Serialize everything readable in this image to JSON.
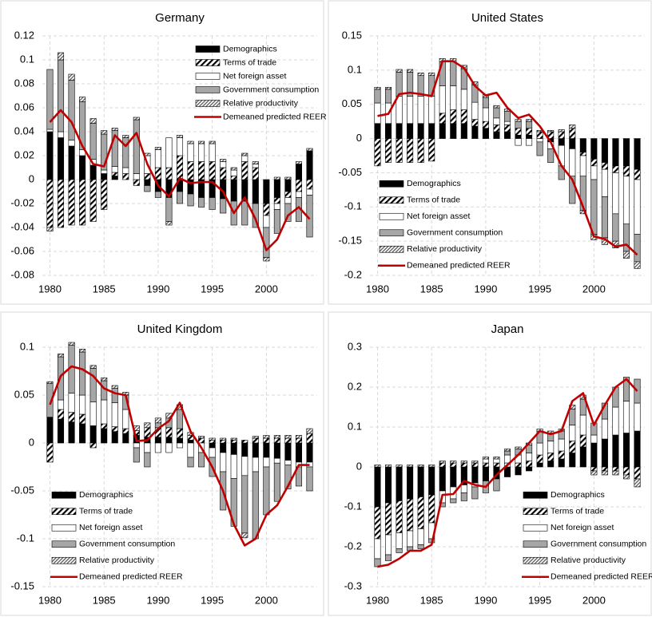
{
  "chart_data": [
    {
      "type": "bar",
      "stacked": true,
      "title": "Germany",
      "legend_position": "top-right",
      "grid": true,
      "x": [
        1980,
        1981,
        1982,
        1983,
        1984,
        1985,
        1986,
        1987,
        1988,
        1989,
        1990,
        1991,
        1992,
        1993,
        1994,
        1995,
        1996,
        1997,
        1998,
        1999,
        2000,
        2001,
        2002,
        2003,
        2004
      ],
      "xlim": [
        1979.3,
        2004.7
      ],
      "xticks": [
        1980,
        1985,
        1990,
        1995,
        2000
      ],
      "ylim": [
        -0.08,
        0.12
      ],
      "yticks": [
        -0.08,
        -0.06,
        -0.04,
        -0.02,
        0,
        0.02,
        0.04,
        0.06,
        0.08,
        0.1,
        0.12
      ],
      "series": [
        {
          "name": "Demographics",
          "color": "#000000",
          "values": [
            0.04,
            0.035,
            0.028,
            0.02,
            0.012,
            0.005,
            0.003,
            0,
            0,
            -0.005,
            -0.01,
            -0.015,
            -0.01,
            -0.012,
            -0.015,
            -0.015,
            -0.016,
            -0.018,
            -0.018,
            -0.02,
            -0.02,
            -0.015,
            -0.01,
            0.013,
            0.024
          ]
        },
        {
          "name": "Terms of trade",
          "color": "#000000",
          "hatch": "wide",
          "values": [
            -0.04,
            -0.04,
            -0.038,
            -0.038,
            -0.035,
            -0.025,
            0.003,
            0.005,
            -0.005,
            0.005,
            0.01,
            0.01,
            0.02,
            0.015,
            0.015,
            0.015,
            0.01,
            0.003,
            0.015,
            0.01,
            -0.01,
            -0.005,
            -0.005,
            -0.01,
            -0.008
          ]
        },
        {
          "name": "Net foreign asset",
          "color": "#ffffff",
          "values": [
            0.002,
            0.005,
            0.005,
            0.005,
            0.005,
            0.003,
            0.005,
            0.005,
            0.005,
            0.015,
            0.015,
            0.025,
            0.015,
            0.015,
            0.015,
            0.015,
            0.005,
            0.005,
            0.005,
            0.003,
            -0.01,
            -0.005,
            -0.005,
            -0.005,
            -0.005
          ]
        },
        {
          "name": "Government consumption",
          "color": "#a6a6a6",
          "values": [
            0.05,
            0.06,
            0.05,
            0.04,
            0.03,
            0.03,
            0.03,
            0.025,
            0.045,
            -0.005,
            -0.005,
            -0.02,
            -0.01,
            -0.01,
            -0.008,
            -0.01,
            -0.012,
            -0.02,
            -0.02,
            -0.02,
            -0.025,
            -0.02,
            -0.015,
            -0.02,
            -0.035
          ]
        },
        {
          "name": "Relative productivity",
          "color": "#595959",
          "hatch": "dense",
          "values": [
            -0.003,
            0.006,
            0.005,
            0.004,
            0.004,
            0.003,
            0.002,
            0.002,
            0.002,
            0.002,
            0.002,
            -0.003,
            0.002,
            0.002,
            0.002,
            0.002,
            0.002,
            0.002,
            0.002,
            0.002,
            -0.003,
            0.002,
            0.002,
            0.002,
            0.002
          ]
        },
        {
          "name": "Demeaned predicted REER",
          "type": "line",
          "color": "#c00000",
          "values": [
            0.048,
            0.058,
            0.048,
            0.028,
            0.013,
            0.011,
            0.037,
            0.028,
            0.039,
            0.013,
            -0.005,
            -0.014,
            0.001,
            -0.003,
            -0.002,
            -0.002,
            -0.01,
            -0.028,
            -0.015,
            -0.033,
            -0.059,
            -0.05,
            -0.03,
            -0.023,
            -0.033
          ]
        }
      ]
    },
    {
      "type": "bar",
      "stacked": true,
      "title": "United States",
      "legend_position": "bottom-left",
      "grid": true,
      "x": [
        1980,
        1981,
        1982,
        1983,
        1984,
        1985,
        1986,
        1987,
        1988,
        1989,
        1990,
        1991,
        1992,
        1993,
        1994,
        1995,
        1996,
        1997,
        1998,
        1999,
        2000,
        2001,
        2002,
        2003,
        2004
      ],
      "xlim": [
        1979.3,
        2004.7
      ],
      "xticks": [
        1980,
        1985,
        1990,
        1995,
        2000
      ],
      "ylim": [
        -0.2,
        0.15
      ],
      "yticks": [
        -0.2,
        -0.15,
        -0.1,
        -0.05,
        0,
        0.05,
        0.1,
        0.15
      ],
      "series": [
        {
          "name": "Demographics",
          "color": "#000000",
          "values": [
            0.022,
            0.022,
            0.022,
            0.022,
            0.022,
            0.022,
            0.022,
            0.022,
            0.022,
            0.018,
            0.015,
            0.01,
            0.01,
            0.005,
            0.005,
            0,
            -0.005,
            -0.01,
            -0.015,
            -0.02,
            -0.03,
            -0.035,
            -0.04,
            -0.04,
            -0.045
          ]
        },
        {
          "name": "Terms of trade",
          "color": "#000000",
          "hatch": "wide",
          "values": [
            -0.04,
            -0.035,
            -0.035,
            -0.035,
            -0.035,
            -0.033,
            0.015,
            0.02,
            0.02,
            0.01,
            0.01,
            0.01,
            0.01,
            0.01,
            0.01,
            0.01,
            0.01,
            0.01,
            0.015,
            -0.005,
            -0.01,
            -0.01,
            -0.01,
            -0.015,
            -0.015
          ]
        },
        {
          "name": "Net foreign asset",
          "color": "#ffffff",
          "values": [
            0.03,
            0.03,
            0.04,
            0.04,
            0.04,
            0.04,
            0.04,
            0.035,
            0.03,
            0.025,
            0.02,
            0.01,
            0.005,
            -0.01,
            -0.01,
            -0.005,
            -0.01,
            -0.03,
            -0.04,
            -0.03,
            -0.02,
            -0.04,
            -0.06,
            -0.07,
            -0.08
          ]
        },
        {
          "name": "Government consumption",
          "color": "#a6a6a6",
          "values": [
            0.02,
            0.02,
            0.035,
            0.035,
            0.03,
            0.03,
            0.035,
            0.035,
            0.03,
            0.025,
            0.015,
            0.015,
            0.015,
            0.01,
            0.01,
            -0.02,
            -0.02,
            -0.02,
            -0.04,
            -0.05,
            -0.08,
            -0.06,
            -0.04,
            -0.04,
            -0.04
          ]
        },
        {
          "name": "Relative productivity",
          "color": "#595959",
          "hatch": "dense",
          "values": [
            0.003,
            0.003,
            0.004,
            0.004,
            0.004,
            0.004,
            0.005,
            0.005,
            0.005,
            0.005,
            0.004,
            0.003,
            0.003,
            0.003,
            0.003,
            0.002,
            0.002,
            0.003,
            0.005,
            -0.005,
            -0.008,
            -0.01,
            -0.01,
            -0.01,
            -0.01
          ]
        },
        {
          "name": "Demeaned predicted REER",
          "type": "line",
          "color": "#c00000",
          "values": [
            0.033,
            0.036,
            0.065,
            0.067,
            0.065,
            0.062,
            0.113,
            0.113,
            0.103,
            0.077,
            0.063,
            0.067,
            0.045,
            0.03,
            0.035,
            0.018,
            -0.005,
            -0.04,
            -0.06,
            -0.1,
            -0.143,
            -0.147,
            -0.158,
            -0.155,
            -0.17
          ]
        }
      ]
    },
    {
      "type": "bar",
      "stacked": true,
      "title": "United Kingdom",
      "legend_position": "bottom-left",
      "grid": true,
      "x": [
        1980,
        1981,
        1982,
        1983,
        1984,
        1985,
        1986,
        1987,
        1988,
        1989,
        1990,
        1991,
        1992,
        1993,
        1994,
        1995,
        1996,
        1997,
        1998,
        1999,
        2000,
        2001,
        2002,
        2003,
        2004
      ],
      "xlim": [
        1979.3,
        2004.7
      ],
      "xticks": [
        1980,
        1985,
        1990,
        1995,
        2000
      ],
      "ylim": [
        -0.15,
        0.1
      ],
      "yticks": [
        -0.15,
        -0.1,
        -0.05,
        0,
        0.05,
        0.1
      ],
      "series": [
        {
          "name": "Demographics",
          "color": "#000000",
          "values": [
            0.027,
            0.025,
            0.022,
            0.02,
            0.018,
            0.015,
            0.012,
            0.01,
            0.008,
            0.006,
            0.006,
            0.006,
            0.005,
            0.003,
            0,
            -0.005,
            -0.01,
            -0.012,
            -0.014,
            -0.015,
            -0.015,
            -0.016,
            -0.018,
            -0.02,
            -0.02
          ]
        },
        {
          "name": "Terms of trade",
          "color": "#000000",
          "hatch": "wide",
          "values": [
            -0.02,
            0.01,
            0.01,
            0.01,
            -0.005,
            0.005,
            0.005,
            0.005,
            0.005,
            0.01,
            0.01,
            0.01,
            0.01,
            0.005,
            0.005,
            0.003,
            0.003,
            0.003,
            0.003,
            0.005,
            0.005,
            0.005,
            0.005,
            0.005,
            0.01
          ]
        },
        {
          "name": "Net foreign asset",
          "color": "#ffffff",
          "values": [
            0,
            0.01,
            0.02,
            0.02,
            0.025,
            0.025,
            0.025,
            0.02,
            -0.005,
            -0.01,
            -0.01,
            -0.01,
            -0.005,
            -0.015,
            -0.01,
            -0.01,
            -0.02,
            -0.025,
            -0.02,
            -0.015,
            -0.01,
            -0.005,
            -0.005,
            -0.005,
            -0.005
          ]
        },
        {
          "name": "Government consumption",
          "color": "#a6a6a6",
          "values": [
            0.035,
            0.045,
            0.05,
            0.045,
            0.035,
            0.02,
            0.015,
            0.015,
            -0.015,
            -0.015,
            0.005,
            0.01,
            0.02,
            -0.01,
            -0.015,
            -0.02,
            -0.04,
            -0.05,
            -0.06,
            -0.07,
            -0.05,
            -0.04,
            -0.025,
            -0.02,
            -0.025
          ]
        },
        {
          "name": "Relative productivity",
          "color": "#595959",
          "hatch": "dense",
          "values": [
            0.002,
            0.003,
            0.003,
            0.003,
            0.003,
            0.003,
            0.003,
            0.003,
            0.005,
            0.005,
            0.005,
            0.005,
            0.005,
            0.003,
            0.002,
            0.002,
            0.002,
            0.002,
            -0.005,
            0.002,
            0.003,
            0.003,
            0.003,
            0.003,
            0.005
          ]
        },
        {
          "name": "Demeaned predicted REER",
          "type": "line",
          "color": "#c00000",
          "values": [
            0.04,
            0.07,
            0.08,
            0.077,
            0.07,
            0.057,
            0.052,
            0.05,
            0.002,
            0.003,
            0.015,
            0.023,
            0.042,
            0.012,
            -0.005,
            -0.025,
            -0.05,
            -0.085,
            -0.107,
            -0.1,
            -0.075,
            -0.065,
            -0.045,
            -0.023,
            -0.023
          ]
        }
      ]
    },
    {
      "type": "bar",
      "stacked": true,
      "title": "Japan",
      "legend_position": "bottom-right",
      "grid": true,
      "x": [
        1980,
        1981,
        1982,
        1983,
        1984,
        1985,
        1986,
        1987,
        1988,
        1989,
        1990,
        1991,
        1992,
        1993,
        1994,
        1995,
        1996,
        1997,
        1998,
        1999,
        2000,
        2001,
        2002,
        2003,
        2004
      ],
      "xlim": [
        1979.3,
        2004.7
      ],
      "xticks": [
        1980,
        1985,
        1990,
        1995,
        2000
      ],
      "ylim": [
        -0.3,
        0.3
      ],
      "yticks": [
        -0.3,
        -0.2,
        -0.1,
        0,
        0.1,
        0.2,
        0.3
      ],
      "series": [
        {
          "name": "Demographics",
          "color": "#000000",
          "values": [
            -0.1,
            -0.09,
            -0.085,
            -0.08,
            -0.075,
            -0.07,
            -0.06,
            -0.05,
            -0.045,
            -0.04,
            -0.035,
            -0.03,
            -0.025,
            -0.02,
            -0.01,
            0.01,
            0.015,
            0.02,
            0.035,
            0.05,
            0.06,
            0.07,
            0.08,
            0.085,
            0.09
          ]
        },
        {
          "name": "Terms of trade",
          "color": "#000000",
          "hatch": "wide",
          "values": [
            -0.08,
            -0.08,
            -0.08,
            -0.08,
            -0.08,
            -0.07,
            0.01,
            0.01,
            0.01,
            0.01,
            0.01,
            0.01,
            0.01,
            0.01,
            0.015,
            0.02,
            0.02,
            0.02,
            0.03,
            0.03,
            -0.01,
            -0.01,
            -0.01,
            -0.02,
            -0.03
          ]
        },
        {
          "name": "Net foreign asset",
          "color": "#ffffff",
          "values": [
            -0.05,
            -0.05,
            -0.04,
            -0.04,
            -0.04,
            -0.04,
            -0.03,
            -0.03,
            -0.02,
            -0.01,
            0.01,
            0.01,
            0.02,
            0.02,
            0.02,
            0.03,
            0.03,
            0.03,
            0.04,
            0.05,
            0.02,
            0.05,
            0.07,
            0.08,
            0.07
          ]
        },
        {
          "name": "Government consumption",
          "color": "#a6a6a6",
          "values": [
            -0.02,
            -0.015,
            -0.01,
            -0.01,
            -0.01,
            -0.01,
            -0.01,
            -0.01,
            -0.02,
            -0.03,
            -0.03,
            -0.03,
            0.01,
            0.015,
            0.02,
            0.03,
            0.02,
            0.02,
            0.04,
            0.04,
            0.03,
            0.04,
            0.05,
            0.06,
            0.06
          ]
        },
        {
          "name": "Relative productivity",
          "color": "#595959",
          "hatch": "dense",
          "values": [
            0.005,
            0.005,
            0.005,
            0.005,
            0.005,
            0.005,
            0.005,
            0.005,
            0.005,
            0.005,
            0.005,
            0.005,
            0.005,
            0.005,
            0.005,
            0.005,
            0.005,
            0.005,
            0.01,
            0.01,
            -0.01,
            -0.01,
            -0.01,
            -0.01,
            -0.02
          ]
        },
        {
          "name": "Demeaned predicted REER",
          "type": "line",
          "color": "#c00000",
          "values": [
            -0.25,
            -0.245,
            -0.23,
            -0.21,
            -0.21,
            -0.195,
            -0.07,
            -0.068,
            -0.035,
            -0.045,
            -0.05,
            -0.02,
            0.005,
            0.03,
            0.06,
            0.09,
            0.082,
            0.09,
            0.165,
            0.185,
            0.105,
            0.155,
            0.2,
            0.22,
            0.19
          ]
        }
      ]
    }
  ]
}
